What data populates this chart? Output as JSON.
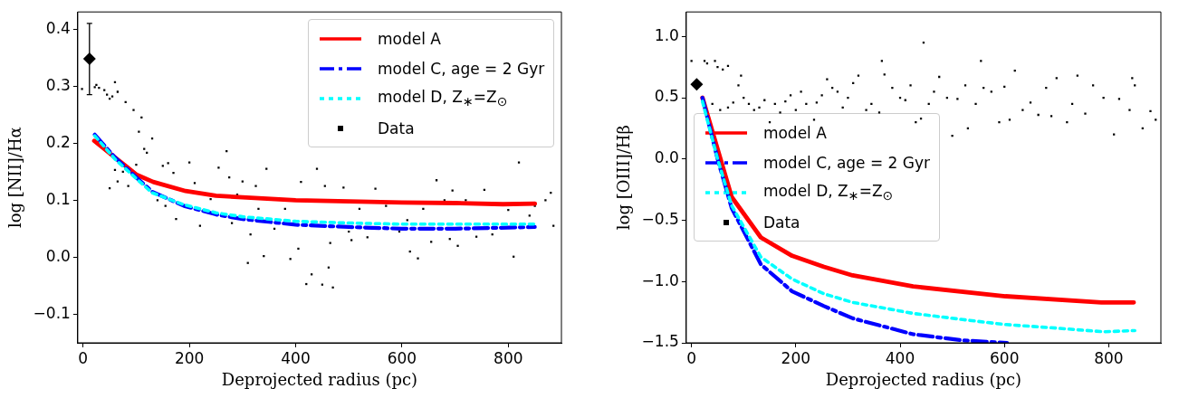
{
  "chart_data": [
    {
      "type": "scatter",
      "xlabel": "Deprojected radius (pc)",
      "ylabel": "log [NII]/Hα",
      "xlim": [
        -10,
        900
      ],
      "xticks": [
        0,
        200,
        400,
        600,
        800
      ],
      "ylim": [
        -0.15,
        0.43
      ],
      "yticks": [
        {
          "value": -0.1,
          "label": "−0.1"
        },
        {
          "value": 0,
          "label": "0.0"
        },
        {
          "value": 0.1,
          "label": "0.1"
        },
        {
          "value": 0.2,
          "label": "0.2"
        },
        {
          "value": 0.3,
          "label": "0.3"
        },
        {
          "value": 0.4,
          "label": "0.4"
        }
      ],
      "legend": "top right",
      "grid": false,
      "series": [
        {
          "type": "scatter",
          "name": "Data",
          "color": "#000000",
          "marker": "square",
          "x": [
            -2,
            22,
            25,
            30,
            40,
            45,
            50,
            55,
            60,
            65,
            80,
            95,
            105,
            110,
            115,
            120,
            130,
            150,
            160,
            170,
            50,
            60,
            65,
            85,
            75,
            100,
            140,
            155,
            175,
            200,
            210,
            220,
            240,
            255,
            270,
            275,
            280,
            290,
            300,
            310,
            315,
            325,
            330,
            340,
            345,
            360,
            380,
            390,
            405,
            410,
            420,
            430,
            440,
            450,
            455,
            462,
            465,
            470,
            490,
            500,
            505,
            520,
            535,
            550,
            570,
            595,
            610,
            615,
            630,
            640,
            655,
            665,
            680,
            690,
            695,
            705,
            720,
            740,
            755,
            770,
            800,
            810,
            820,
            840,
            850,
            870,
            880,
            885
          ],
          "values": [
            0.295,
            0.298,
            0.302,
            0.297,
            0.293,
            0.285,
            0.278,
            0.282,
            0.307,
            0.29,
            0.272,
            0.258,
            0.22,
            0.245,
            0.19,
            0.183,
            0.208,
            0.16,
            0.165,
            0.148,
            0.121,
            0.153,
            0.133,
            0.125,
            0.15,
            0.162,
            0.1,
            0.09,
            0.067,
            0.166,
            0.13,
            0.055,
            0.102,
            0.157,
            0.186,
            0.14,
            0.06,
            0.11,
            0.133,
            -0.01,
            0.04,
            0.125,
            0.085,
            0.002,
            0.155,
            0.05,
            0.085,
            -0.003,
            0.015,
            0.132,
            -0.047,
            -0.03,
            0.155,
            -0.048,
            0.125,
            -0.018,
            0.025,
            -0.053,
            0.122,
            0.045,
            0.03,
            0.085,
            0.035,
            0.12,
            0.09,
            0.045,
            0.065,
            0.01,
            -0.002,
            0.085,
            0.027,
            0.135,
            0.1,
            0.032,
            0.117,
            0.02,
            0.1,
            0.036,
            0.118,
            0.04,
            0.083,
            0.001,
            0.166,
            0.073,
            0.09,
            0.1,
            0.113,
            0.055
          ]
        },
        {
          "type": "scatter",
          "color": "#000000",
          "marker": "diamond",
          "x": [
            12
          ],
          "values": [
            0.348
          ],
          "errors": [
            [
              0.285,
              0.41
            ]
          ]
        },
        {
          "type": "line",
          "name": "model A",
          "color": "#ff0000",
          "line_style": "solid",
          "x": [
            21,
            40,
            60,
            80,
            100,
            132,
            193,
            250,
            300,
            400,
            500,
            600,
            700,
            790,
            850
          ],
          "values": [
            0.204,
            0.19,
            0.175,
            0.16,
            0.145,
            0.132,
            0.116,
            0.108,
            0.105,
            0.1,
            0.098,
            0.096,
            0.095,
            0.093,
            0.094
          ]
        },
        {
          "type": "line",
          "name": "model C, age = 2 Gyr",
          "color": "#0000ff",
          "line_style": "dashed",
          "x": [
            22,
            60,
            100,
            130,
            190,
            250,
            300,
            400,
            500,
            600,
            700,
            850
          ],
          "values": [
            0.215,
            0.175,
            0.14,
            0.115,
            0.09,
            0.075,
            0.067,
            0.057,
            0.053,
            0.05,
            0.05,
            0.053
          ]
        },
        {
          "type": "line",
          "name": "model D, Z$_{∗}$=Z$_{⊙}$",
          "color": "#00ffff",
          "line_style": "dotted",
          "x": [
            22,
            60,
            100,
            130,
            190,
            250,
            300,
            400,
            500,
            600,
            700,
            850
          ],
          "values": [
            0.213,
            0.172,
            0.138,
            0.113,
            0.092,
            0.078,
            0.071,
            0.063,
            0.06,
            0.058,
            0.058,
            0.058
          ]
        }
      ]
    },
    {
      "type": "scatter",
      "xlabel": "Deprojected radius (pc)",
      "ylabel": "log [OIII]/Hβ",
      "xlim": [
        -10,
        900
      ],
      "xticks": [
        0,
        200,
        400,
        600,
        800
      ],
      "ylim": [
        -1.5,
        1.2
      ],
      "yticks": [
        {
          "value": -1.5,
          "label": "−1.5"
        },
        {
          "value": -1,
          "label": "−1.0"
        },
        {
          "value": -0.5,
          "label": "−0.5"
        },
        {
          "value": 0,
          "label": "0.0"
        },
        {
          "value": 0.5,
          "label": "0.5"
        },
        {
          "value": 1,
          "label": "1.0"
        }
      ],
      "legend": "left",
      "grid": false,
      "series": [
        {
          "type": "scatter",
          "name": "Data",
          "color": "#000000",
          "marker": "square",
          "x": [
            0,
            25,
            30,
            45,
            50,
            60,
            70,
            40,
            55,
            70,
            80,
            90,
            95,
            100,
            110,
            120,
            130,
            140,
            150,
            160,
            170,
            180,
            190,
            200,
            210,
            220,
            235,
            240,
            250,
            260,
            270,
            280,
            290,
            300,
            310,
            320,
            335,
            345,
            360,
            365,
            370,
            385,
            400,
            410,
            420,
            430,
            440,
            445,
            455,
            465,
            475,
            490,
            500,
            510,
            525,
            530,
            545,
            555,
            560,
            575,
            590,
            600,
            610,
            620,
            635,
            650,
            665,
            680,
            690,
            700,
            720,
            730,
            740,
            755,
            770,
            790,
            810,
            820,
            840,
            845,
            850,
            865,
            880,
            890
          ],
          "values": [
            0.8,
            0.8,
            0.78,
            0.8,
            0.75,
            0.73,
            0.76,
            0.45,
            0.4,
            0.42,
            0.46,
            0.6,
            0.68,
            0.5,
            0.45,
            0.4,
            0.42,
            0.48,
            0.3,
            0.45,
            0.38,
            0.47,
            0.52,
            0.4,
            0.55,
            0.45,
            0.32,
            0.46,
            0.52,
            0.65,
            0.58,
            0.55,
            0.42,
            0.5,
            0.62,
            0.68,
            0.4,
            0.45,
            0.38,
            0.8,
            0.69,
            0.58,
            0.5,
            0.48,
            0.6,
            0.3,
            0.33,
            0.95,
            0.45,
            0.55,
            0.67,
            0.5,
            0.19,
            0.49,
            0.6,
            0.25,
            0.45,
            0.8,
            0.58,
            0.55,
            0.3,
            0.59,
            0.32,
            0.72,
            0.4,
            0.46,
            0.36,
            0.58,
            0.35,
            0.66,
            0.3,
            0.45,
            0.68,
            0.37,
            0.6,
            0.5,
            0.2,
            0.49,
            0.4,
            0.66,
            0.6,
            0.25,
            0.39,
            0.32
          ]
        },
        {
          "type": "scatter",
          "color": "#000000",
          "marker": "diamond",
          "x": [
            10
          ],
          "values": [
            0.61
          ]
        },
        {
          "type": "line",
          "name": "model A",
          "color": "#ff0000",
          "line_style": "solid",
          "x": [
            21,
            77,
            133,
            193,
            254,
            309,
            425,
            602,
            786,
            848
          ],
          "values": [
            0.5,
            -0.31,
            -0.64,
            -0.79,
            -0.88,
            -0.95,
            -1.04,
            -1.12,
            -1.17,
            -1.17
          ]
        },
        {
          "type": "line",
          "name": "model C, age = 2 Gyr",
          "color": "#0000ff",
          "line_style": "dashed",
          "x": [
            21,
            50,
            77,
            133,
            193,
            254,
            309,
            425,
            520,
            605
          ],
          "values": [
            0.5,
            0.0,
            -0.4,
            -0.86,
            -1.08,
            -1.2,
            -1.3,
            -1.43,
            -1.48,
            -1.5
          ]
        },
        {
          "type": "line",
          "name": "model D, Z$_{∗}$=Z$_{⊙}$",
          "color": "#00ffff",
          "line_style": "dotted",
          "x": [
            21,
            50,
            77,
            133,
            193,
            254,
            309,
            425,
            520,
            600,
            700,
            790,
            850
          ],
          "values": [
            0.47,
            0.0,
            -0.38,
            -0.8,
            -0.98,
            -1.1,
            -1.17,
            -1.26,
            -1.31,
            -1.35,
            -1.38,
            -1.41,
            -1.4
          ]
        }
      ]
    }
  ]
}
